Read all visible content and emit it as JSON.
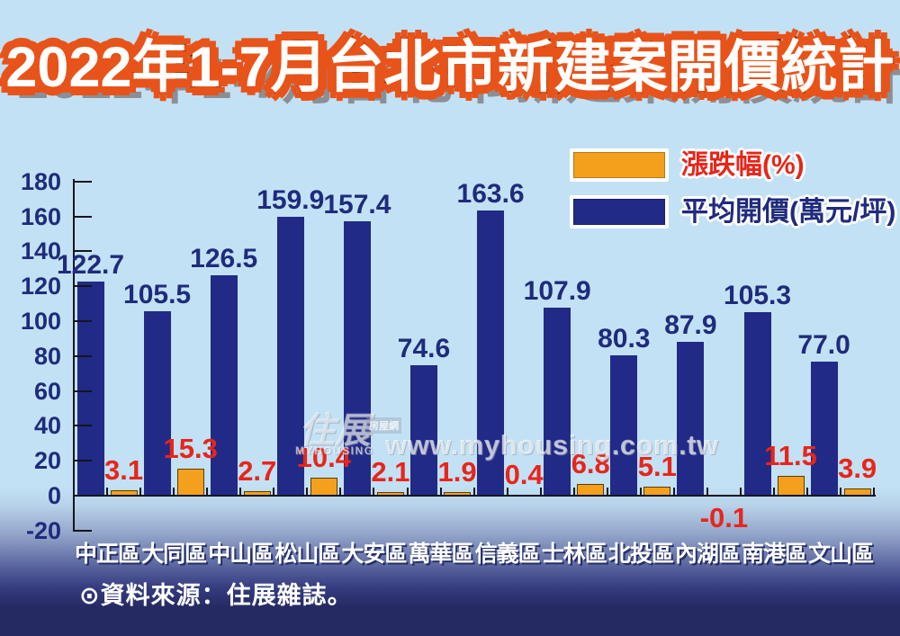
{
  "title": "2022年1-7月台北市新建案開價統計",
  "source": "⊙資料來源：住展雜誌。",
  "watermark": {
    "url_text": "www.myhousing.com.tw",
    "logo_main": "住展",
    "logo_badge": "房屋網",
    "logo_caption": "MYHOUSING"
  },
  "legend": [
    {
      "label": "漲跌幅(%)",
      "color": "#f5a01c",
      "text_color": "#e8251a"
    },
    {
      "label": "平均開價(萬元/坪)",
      "color": "#212a86",
      "text_color": "#1f2b7c"
    }
  ],
  "colors": {
    "background_top": "#c2e1f4",
    "background_bottom": "#262a63",
    "bar_blue": "#212a86",
    "bar_orange": "#f5a01c",
    "bar_orange_border": "#5b3c00",
    "value_label_red": "#e8251a",
    "value_label_navy": "#1f2b7c",
    "axis": "#15151e",
    "title_fill": "#ffffff",
    "title_outline": "#4a1c08",
    "title_glow": "#e8531a"
  },
  "chart_data": {
    "type": "bar",
    "title": "2022年1-7月台北市新建案開價統計",
    "categories": [
      "中正區",
      "大同區",
      "中山區",
      "松山區",
      "大安區",
      "萬華區",
      "信義區",
      "士林區",
      "北投區",
      "內湖區",
      "南港區",
      "文山區"
    ],
    "series": [
      {
        "name": "平均開價(萬元/坪)",
        "color": "#212a86",
        "values": [
          122.7,
          105.5,
          126.5,
          159.9,
          157.4,
          74.6,
          163.6,
          107.9,
          80.3,
          87.9,
          105.3,
          77.0
        ]
      },
      {
        "name": "漲跌幅(%)",
        "color": "#f5a01c",
        "values": [
          3.1,
          15.3,
          2.7,
          10.4,
          2.1,
          1.9,
          0.4,
          6.8,
          5.1,
          -0.1,
          11.5,
          3.9
        ]
      }
    ],
    "xlabel": "",
    "ylabel": "",
    "ylim": [
      -20,
      180
    ],
    "yticks": [
      180,
      160,
      140,
      120,
      100,
      80,
      60,
      40,
      20,
      0,
      -20
    ],
    "grid": false,
    "legend_position": "top-right",
    "value_labels_shown": true
  }
}
